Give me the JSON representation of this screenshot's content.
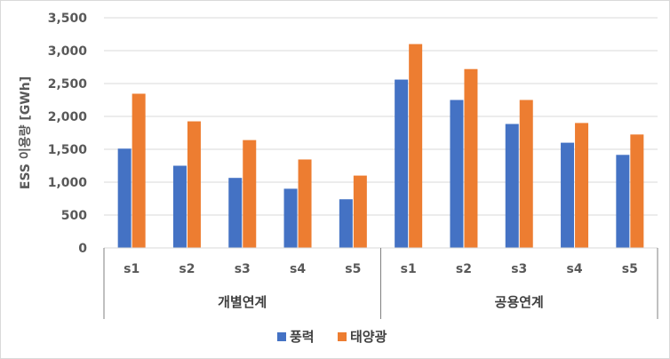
{
  "chart_data": {
    "type": "bar",
    "title": "",
    "xlabel": "",
    "ylabel": "ESS 이용량 [GWh]",
    "ylim": [
      0,
      3500
    ],
    "yticks": [
      "0",
      "500",
      "1,000",
      "1,500",
      "2,000",
      "2,500",
      "3,000",
      "3,500"
    ],
    "ytick_values": [
      0,
      500,
      1000,
      1500,
      2000,
      2500,
      3000,
      3500
    ],
    "grid": true,
    "legend_position": "bottom",
    "groups": [
      {
        "name": "개별연계",
        "categories": [
          "s1",
          "s2",
          "s3",
          "s4",
          "s5"
        ]
      },
      {
        "name": "공용연계",
        "categories": [
          "s1",
          "s2",
          "s3",
          "s4",
          "s5"
        ]
      }
    ],
    "series": [
      {
        "name": "풍력",
        "color": "#4472c4",
        "values": [
          1510,
          1250,
          1065,
          900,
          740,
          2560,
          2250,
          1885,
          1600,
          1415
        ]
      },
      {
        "name": "태양광",
        "color": "#ed7d31",
        "values": [
          2345,
          1925,
          1640,
          1345,
          1100,
          3100,
          2720,
          2250,
          1900,
          1725
        ]
      }
    ]
  }
}
